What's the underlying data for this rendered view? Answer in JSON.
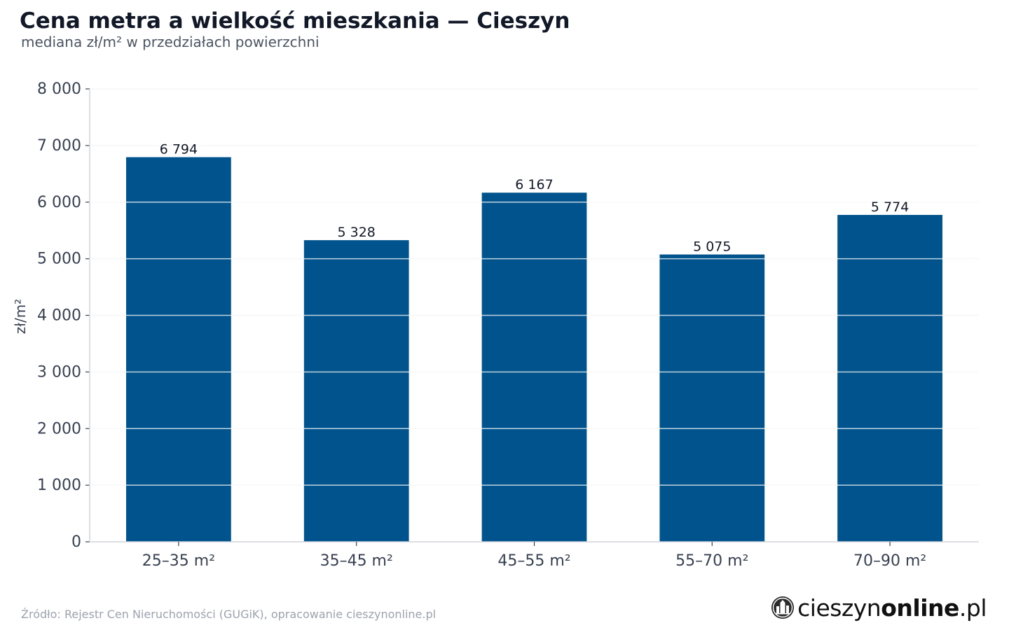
{
  "header": {
    "title": "Cena metra a wielkość mieszkania — Cieszyn",
    "subtitle": "mediana zł/m² w przedziałach powierzchni"
  },
  "footer": {
    "source": "Źródło: Rejestr Cen Nieruchomości (GUGiK), opracowanie cieszynonline.pl",
    "logo_regular": "cieszyn",
    "logo_bold": "online",
    "logo_suffix": ".pl",
    "logo_icon": "city-emblem-icon"
  },
  "colors": {
    "bar": "#00538c",
    "grid": "#e5e7eb",
    "axis": "#d1d5db",
    "text": "#374151"
  },
  "chart_data": {
    "type": "bar",
    "title": "Cena metra a wielkość mieszkania — Cieszyn",
    "subtitle": "mediana zł/m² w przedziałach powierzchni",
    "xlabel": "",
    "ylabel": "zł/m²",
    "categories": [
      "25–35 m²",
      "35–45 m²",
      "45–55 m²",
      "55–70 m²",
      "70–90 m²"
    ],
    "values": [
      6794,
      5328,
      6167,
      5075,
      5774
    ],
    "value_labels": [
      "6 794",
      "5 328",
      "6 167",
      "5 075",
      "5 774"
    ],
    "ylim": [
      0,
      8000
    ],
    "yticks": [
      0,
      1000,
      2000,
      3000,
      4000,
      5000,
      6000,
      7000,
      8000
    ],
    "ytick_labels": [
      "0",
      "1 000",
      "2 000",
      "3 000",
      "4 000",
      "5 000",
      "6 000",
      "7 000",
      "8 000"
    ],
    "grid": true,
    "legend": "none"
  }
}
